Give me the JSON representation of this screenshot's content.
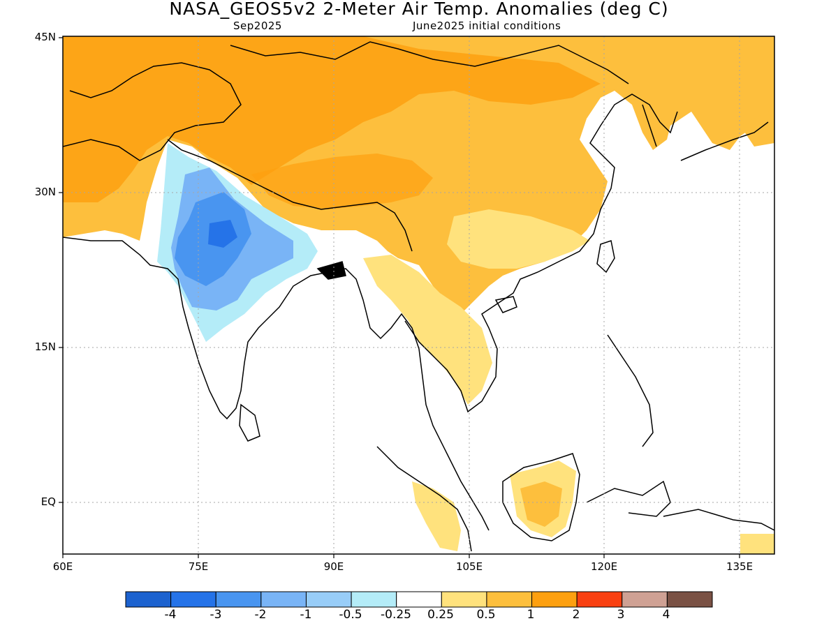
{
  "header": {
    "title": "NASA_GEOS5v2 2-Meter Air Temp. Anomalies (deg C)",
    "valid_month": "Sep2025",
    "init": "June2025 initial conditions"
  },
  "axes": {
    "y_ticks": [
      "45N",
      "30N",
      "15N",
      "EQ"
    ],
    "x_ticks": [
      "60E",
      "75E",
      "90E",
      "105E",
      "120E",
      "135E"
    ]
  },
  "colorbar": {
    "labels": [
      "-4",
      "-3",
      "-2",
      "-1",
      "-0.5",
      "-0.25",
      "0.25",
      "0.5",
      "1",
      "2",
      "3",
      "4"
    ],
    "colors": [
      "#1c62cf",
      "#2573e8",
      "#4995f0",
      "#79b4f6",
      "#98cdf8",
      "#b4ecf8",
      "#ffffff",
      "#ffe27d",
      "#fdbf3d",
      "#fda010",
      "#f94011",
      "#cfa194",
      "#7a5144"
    ]
  },
  "map_colors": {
    "ocean_neutral": "#ffffff",
    "coastline": "#000000",
    "grid": "#a6a6a6"
  }
}
